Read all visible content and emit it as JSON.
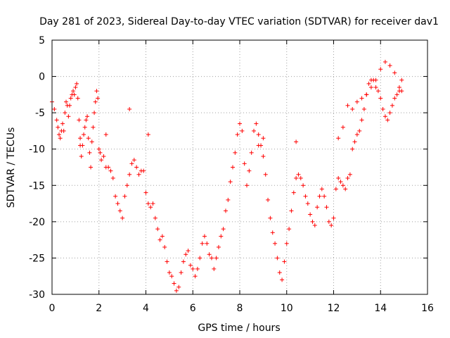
{
  "chart_data": {
    "type": "scatter",
    "title": "Day 281 of 2023, Sidereal Day-to-day VTEC variation (SDTVAR) for receiver dav1",
    "xlabel": "GPS time / hours",
    "ylabel": "SDTVAR / TECUs",
    "xlim": [
      0,
      16
    ],
    "ylim": [
      -30,
      5
    ],
    "xticks": [
      0,
      2,
      4,
      6,
      8,
      10,
      12,
      14,
      16
    ],
    "yticks": [
      -30,
      -25,
      -20,
      -15,
      -10,
      -5,
      0,
      5
    ],
    "xtick_labels": [
      "0",
      "2",
      "4",
      "6",
      "8",
      "10",
      "12",
      "14",
      "16"
    ],
    "ytick_labels": [
      "-30",
      "-25",
      "-20",
      "-15",
      "-10",
      "-5",
      "0",
      "5"
    ],
    "grid": true,
    "marker": "+",
    "color": "#ff0000",
    "series": [
      {
        "name": "SDTVAR",
        "x": [
          0.0,
          0.1,
          0.2,
          0.25,
          0.3,
          0.35,
          0.4,
          0.45,
          0.5,
          0.55,
          0.6,
          0.65,
          0.7,
          0.75,
          0.8,
          0.85,
          0.9,
          0.95,
          1.0,
          1.05,
          1.1,
          1.15,
          1.2,
          1.25,
          1.3,
          1.35,
          1.4,
          1.45,
          1.5,
          1.55,
          1.6,
          1.65,
          1.7,
          1.75,
          1.8,
          1.85,
          1.9,
          1.95,
          2.0,
          2.05,
          2.1,
          2.2,
          2.3,
          2.4,
          2.5,
          2.6,
          2.7,
          2.8,
          2.9,
          3.0,
          3.1,
          3.2,
          3.3,
          3.4,
          3.5,
          3.6,
          3.7,
          3.8,
          3.9,
          4.0,
          4.1,
          4.2,
          4.3,
          4.4,
          4.5,
          4.6,
          4.7,
          4.8,
          4.9,
          5.0,
          5.1,
          5.2,
          5.3,
          5.4,
          5.5,
          5.6,
          5.7,
          5.8,
          5.9,
          6.0,
          6.1,
          6.2,
          6.3,
          6.4,
          6.5,
          6.6,
          6.7,
          6.8,
          6.9,
          7.0,
          7.1,
          7.2,
          7.3,
          7.4,
          7.5,
          7.6,
          7.7,
          7.8,
          7.9,
          8.0,
          8.1,
          8.2,
          8.3,
          8.4,
          8.5,
          8.6,
          8.7,
          8.8,
          8.9,
          9.0,
          9.1,
          9.2,
          9.3,
          9.4,
          9.5,
          9.6,
          9.7,
          9.8,
          9.9,
          10.0,
          10.1,
          10.2,
          10.3,
          10.4,
          10.5,
          10.6,
          10.7,
          10.8,
          10.9,
          11.0,
          11.1,
          11.2,
          11.3,
          11.4,
          11.5,
          11.6,
          11.7,
          11.8,
          11.9,
          12.0,
          12.1,
          12.2,
          12.3,
          12.4,
          12.5,
          12.6,
          12.7,
          12.8,
          12.9,
          13.0,
          13.1,
          13.2,
          13.3,
          13.4,
          13.5,
          13.6,
          13.7,
          13.8,
          13.9,
          14.0,
          14.1,
          14.2,
          14.3,
          14.4,
          14.5,
          14.6,
          14.7,
          14.8,
          14.9,
          12.2,
          12.4,
          12.6,
          12.8,
          13.0,
          13.2,
          13.4,
          13.6,
          13.8,
          14.0,
          14.2,
          14.4,
          14.6,
          14.8,
          14.9,
          3.3,
          4.1,
          10.4,
          1.2,
          2.3,
          8.8,
          9.0
        ],
        "y": [
          -3.5,
          -4.5,
          -6.0,
          -7.0,
          -8.0,
          -8.5,
          -7.5,
          -6.5,
          -7.5,
          -5.0,
          -3.5,
          -4.0,
          -5.5,
          -4.0,
          -3.0,
          -2.5,
          -2.0,
          -2.5,
          -1.5,
          -1.0,
          -3.0,
          -6.0,
          -8.5,
          -11.0,
          -9.5,
          -8.0,
          -7.0,
          -6.0,
          -5.5,
          -8.5,
          -10.5,
          -12.5,
          -9.0,
          -7.0,
          -5.0,
          -3.5,
          -2.0,
          -3.0,
          -10.0,
          -10.5,
          -11.5,
          -11.0,
          -12.5,
          -12.5,
          -13.0,
          -14.0,
          -16.5,
          -17.5,
          -18.5,
          -19.5,
          -16.5,
          -15.0,
          -13.5,
          -12.0,
          -11.5,
          -12.5,
          -13.5,
          -13.0,
          -13.0,
          -16.0,
          -17.5,
          -18.0,
          -17.5,
          -19.5,
          -21.0,
          -22.5,
          -22.0,
          -23.5,
          -25.5,
          -27.0,
          -27.5,
          -28.5,
          -29.5,
          -29.0,
          -27.0,
          -25.5,
          -24.5,
          -24.0,
          -26.0,
          -26.5,
          -27.5,
          -26.5,
          -25.0,
          -23.0,
          -22.0,
          -23.0,
          -24.5,
          -25.0,
          -26.5,
          -25.0,
          -23.5,
          -22.0,
          -21.0,
          -18.5,
          -17.0,
          -14.5,
          -12.5,
          -10.5,
          -8.0,
          -6.5,
          -7.5,
          -12.0,
          -15.0,
          -13.0,
          -10.5,
          -7.5,
          -6.5,
          -8.0,
          -9.5,
          -11.0,
          -13.5,
          -17.0,
          -19.5,
          -21.5,
          -23.0,
          -25.0,
          -27.0,
          -28.0,
          -25.5,
          -23.0,
          -21.0,
          -18.5,
          -16.0,
          -14.0,
          -13.5,
          -14.0,
          -15.0,
          -16.5,
          -17.5,
          -19.0,
          -20.0,
          -20.5,
          -18.0,
          -16.5,
          -15.5,
          -16.5,
          -18.0,
          -20.0,
          -20.5,
          -19.5,
          -15.5,
          -14.0,
          -14.5,
          -15.0,
          -15.5,
          -14.0,
          -13.5,
          -10.0,
          -9.0,
          -8.0,
          -7.5,
          -6.0,
          -4.5,
          -2.5,
          -1.0,
          -0.5,
          -0.5,
          -1.5,
          -2.0,
          -3.0,
          -4.5,
          -5.5,
          -6.0,
          -5.0,
          -4.0,
          -3.0,
          -2.5,
          -2.0,
          -2.0,
          -8.5,
          -7.0,
          -4.0,
          -4.5,
          -3.5,
          -3.0,
          -2.5,
          -1.5,
          -0.5,
          1.0,
          2.0,
          1.5,
          0.5,
          -1.5,
          -0.5,
          -4.5,
          -8.0,
          -9.0,
          -9.5,
          -8.0,
          -9.5,
          -8.5
        ]
      }
    ]
  }
}
